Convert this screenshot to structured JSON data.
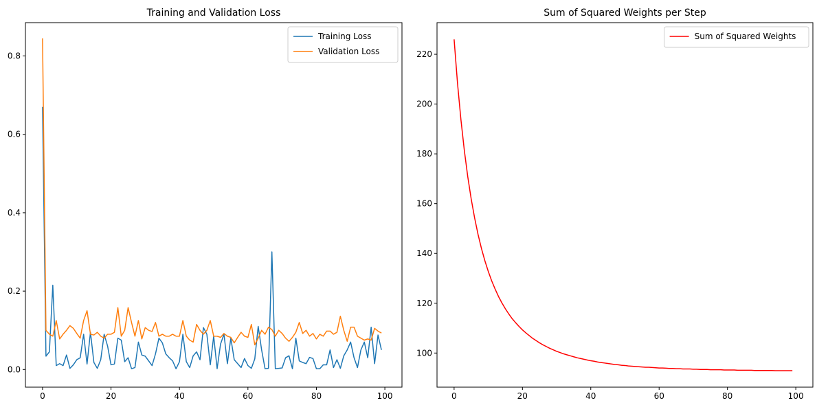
{
  "chart_data": [
    {
      "type": "line",
      "title": "Training and Validation Loss",
      "xlabel": "",
      "ylabel": "",
      "xlim": [
        -5,
        105
      ],
      "ylim": [
        -0.045,
        0.885
      ],
      "xticks": [
        0,
        20,
        40,
        60,
        80,
        100
      ],
      "yticks": [
        0.0,
        0.2,
        0.4,
        0.6,
        0.8
      ],
      "ytick_labels": [
        "0.0",
        "0.2",
        "0.4",
        "0.6",
        "0.8"
      ],
      "grid": false,
      "legend": "top-right",
      "x_start": 0,
      "series": [
        {
          "name": "Training Loss",
          "color": "#1f77b4",
          "values": [
            0.67,
            0.034,
            0.045,
            0.215,
            0.01,
            0.015,
            0.01,
            0.037,
            0.003,
            0.012,
            0.025,
            0.03,
            0.09,
            0.014,
            0.095,
            0.018,
            0.003,
            0.025,
            0.09,
            0.06,
            0.012,
            0.014,
            0.08,
            0.075,
            0.02,
            0.03,
            0.002,
            0.005,
            0.07,
            0.037,
            0.034,
            0.022,
            0.01,
            0.04,
            0.08,
            0.068,
            0.04,
            0.03,
            0.022,
            0.002,
            0.02,
            0.09,
            0.02,
            0.005,
            0.035,
            0.045,
            0.025,
            0.107,
            0.09,
            0.012,
            0.085,
            0.002,
            0.065,
            0.09,
            0.015,
            0.08,
            0.025,
            0.015,
            0.005,
            0.028,
            0.01,
            0.003,
            0.027,
            0.11,
            0.05,
            0.002,
            0.003,
            0.3,
            0.002,
            0.003,
            0.004,
            0.03,
            0.035,
            0.002,
            0.08,
            0.022,
            0.018,
            0.015,
            0.031,
            0.028,
            0.002,
            0.002,
            0.012,
            0.012,
            0.05,
            0.005,
            0.025,
            0.003,
            0.035,
            0.05,
            0.07,
            0.03,
            0.005,
            0.05,
            0.07,
            0.03,
            0.108,
            0.015,
            0.088,
            0.05
          ]
        },
        {
          "name": "Validation Loss",
          "color": "#ff7f0e",
          "values": [
            0.845,
            0.1,
            0.09,
            0.085,
            0.125,
            0.078,
            0.09,
            0.1,
            0.112,
            0.105,
            0.092,
            0.08,
            0.125,
            0.15,
            0.09,
            0.088,
            0.095,
            0.085,
            0.08,
            0.09,
            0.09,
            0.095,
            0.158,
            0.085,
            0.1,
            0.158,
            0.12,
            0.085,
            0.125,
            0.078,
            0.107,
            0.1,
            0.097,
            0.12,
            0.085,
            0.09,
            0.085,
            0.085,
            0.09,
            0.085,
            0.085,
            0.125,
            0.085,
            0.075,
            0.07,
            0.115,
            0.1,
            0.09,
            0.1,
            0.125,
            0.085,
            0.085,
            0.082,
            0.092,
            0.085,
            0.082,
            0.068,
            0.082,
            0.095,
            0.085,
            0.082,
            0.115,
            0.063,
            0.08,
            0.1,
            0.09,
            0.108,
            0.102,
            0.085,
            0.1,
            0.092,
            0.08,
            0.072,
            0.082,
            0.095,
            0.12,
            0.092,
            0.1,
            0.085,
            0.092,
            0.078,
            0.09,
            0.085,
            0.098,
            0.098,
            0.09,
            0.095,
            0.136,
            0.1,
            0.072,
            0.108,
            0.108,
            0.085,
            0.08,
            0.075,
            0.078,
            0.075,
            0.105,
            0.098,
            0.093
          ]
        }
      ]
    },
    {
      "type": "line",
      "title": "Sum of Squared Weights per Step",
      "xlabel": "",
      "ylabel": "",
      "xlim": [
        -5,
        105
      ],
      "ylim": [
        86.3,
        232.7
      ],
      "xticks": [
        0,
        20,
        40,
        60,
        80,
        100
      ],
      "yticks": [
        100,
        120,
        140,
        160,
        180,
        200,
        220
      ],
      "ytick_labels": [
        "100",
        "120",
        "140",
        "160",
        "180",
        "200",
        "220"
      ],
      "grid": false,
      "legend": "top-right",
      "x_start": 0,
      "series": [
        {
          "name": "Sum of Squared Weights",
          "color": "#ff0000",
          "values": [
            226.0,
            208.3,
            193.7,
            181.3,
            170.8,
            161.9,
            154.3,
            147.7,
            142.0,
            137.1,
            132.8,
            129.0,
            125.7,
            122.7,
            120.1,
            117.8,
            115.7,
            113.8,
            112.2,
            110.7,
            109.3,
            108.1,
            107.0,
            105.9,
            105.0,
            104.1,
            103.3,
            102.6,
            101.9,
            101.3,
            100.7,
            100.2,
            99.7,
            99.3,
            98.9,
            98.5,
            98.1,
            97.8,
            97.5,
            97.2,
            96.9,
            96.7,
            96.4,
            96.2,
            96.0,
            95.8,
            95.6,
            95.4,
            95.3,
            95.1,
            95.0,
            94.8,
            94.7,
            94.6,
            94.5,
            94.4,
            94.3,
            94.3,
            94.2,
            94.1,
            94.0,
            94.0,
            93.9,
            93.8,
            93.8,
            93.7,
            93.7,
            93.6,
            93.6,
            93.6,
            93.5,
            93.5,
            93.4,
            93.4,
            93.4,
            93.3,
            93.3,
            93.3,
            93.3,
            93.2,
            93.2,
            93.2,
            93.2,
            93.1,
            93.1,
            93.1,
            93.1,
            93.1,
            93.0,
            93.0,
            93.0,
            93.0,
            93.0,
            93.0,
            92.9,
            92.9,
            92.9,
            92.9,
            92.9,
            92.9
          ]
        }
      ]
    }
  ]
}
